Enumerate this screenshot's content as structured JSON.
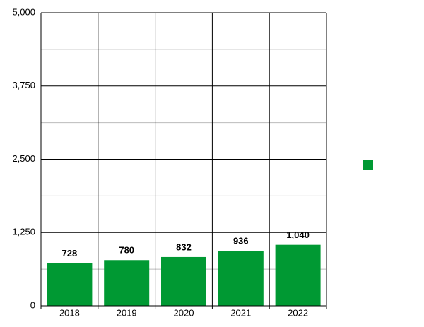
{
  "chart_data": {
    "type": "bar",
    "categories": [
      "2018",
      "2019",
      "2020",
      "2021",
      "2022"
    ],
    "values": [
      728,
      780,
      832,
      936,
      1040
    ],
    "value_labels": [
      "728",
      "780",
      "832",
      "936",
      "1,040"
    ],
    "color": "#009933",
    "ylim": [
      0,
      5000
    ],
    "yticks": [
      0,
      {
        "value": 1250,
        "label": "1,250"
      },
      {
        "value": 2500,
        "label": "2,500"
      },
      {
        "value": 3750,
        "label": "3,750"
      },
      {
        "value": 5000,
        "label": "5,000"
      }
    ],
    "minor_yticks": [
      625,
      1875,
      3125,
      4375
    ],
    "grid": true
  }
}
